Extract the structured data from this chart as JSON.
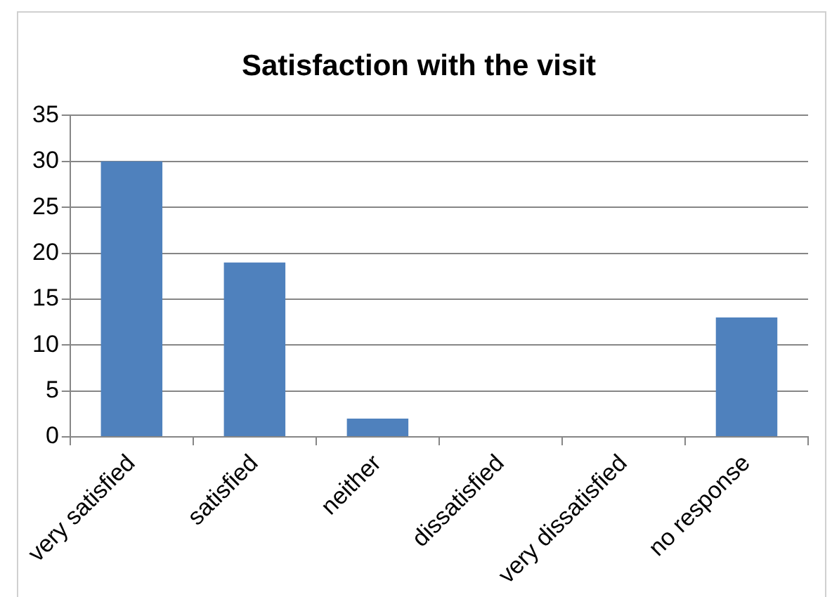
{
  "chart_data": {
    "type": "bar",
    "title": "Satisfaction with the visit",
    "categories": [
      "very satisfied",
      "satisfied",
      "neither",
      "dissatisfied",
      "very dissatisfied",
      "no response"
    ],
    "values": [
      30,
      19,
      2,
      0,
      0,
      13
    ],
    "color": "#4f81bd",
    "ylim": [
      0,
      35
    ],
    "yticks": [
      0,
      5,
      10,
      15,
      20,
      25,
      30,
      35
    ],
    "grid": "y"
  }
}
